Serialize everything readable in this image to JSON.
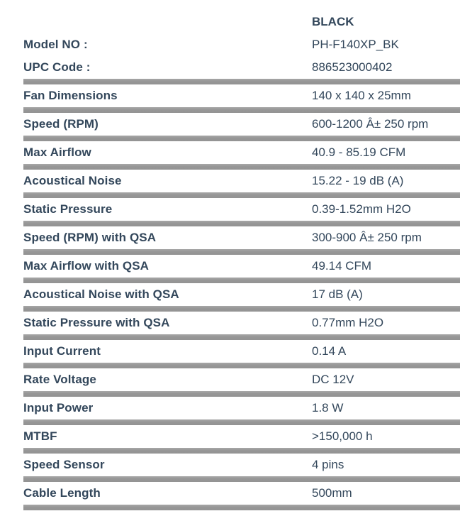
{
  "table": {
    "column_header": "BLACK",
    "header_rows": [
      {
        "label": "Model NO :",
        "value": "PH-F140XP_BK"
      },
      {
        "label": "UPC Code :",
        "value": "886523000402"
      }
    ],
    "specs": [
      {
        "label": "Fan Dimensions",
        "value": "140 x 140 x 25mm"
      },
      {
        "label": "Speed (RPM)",
        "value": "600-1200 Â± 250 rpm"
      },
      {
        "label": "Max Airflow",
        "value": "40.9 - 85.19 CFM"
      },
      {
        "label": "Acoustical Noise",
        "value": "15.22 - 19 dB (A)"
      },
      {
        "label": "Static Pressure",
        "value": "0.39-1.52mm H2O"
      },
      {
        "label": "Speed (RPM) with QSA",
        "value": "300-900 Â± 250 rpm"
      },
      {
        "label": "Max Airflow with QSA",
        "value": "49.14 CFM"
      },
      {
        "label": "Acoustical Noise with QSA",
        "value": "17 dB (A)"
      },
      {
        "label": "Static Pressure with QSA",
        "value": "0.77mm H2O"
      },
      {
        "label": "Input Current",
        "value": "0.14 A"
      },
      {
        "label": "Rate Voltage",
        "value": "DC 12V"
      },
      {
        "label": "Input Power",
        "value": "1.8 W"
      },
      {
        "label": "MTBF",
        "value": ">150,000 h"
      },
      {
        "label": "Speed Sensor",
        "value": "4 pins"
      },
      {
        "label": "Cable Length",
        "value": "500mm"
      }
    ]
  },
  "colors": {
    "text": "#33475b",
    "separator": "#969696",
    "background": "#ffffff"
  }
}
